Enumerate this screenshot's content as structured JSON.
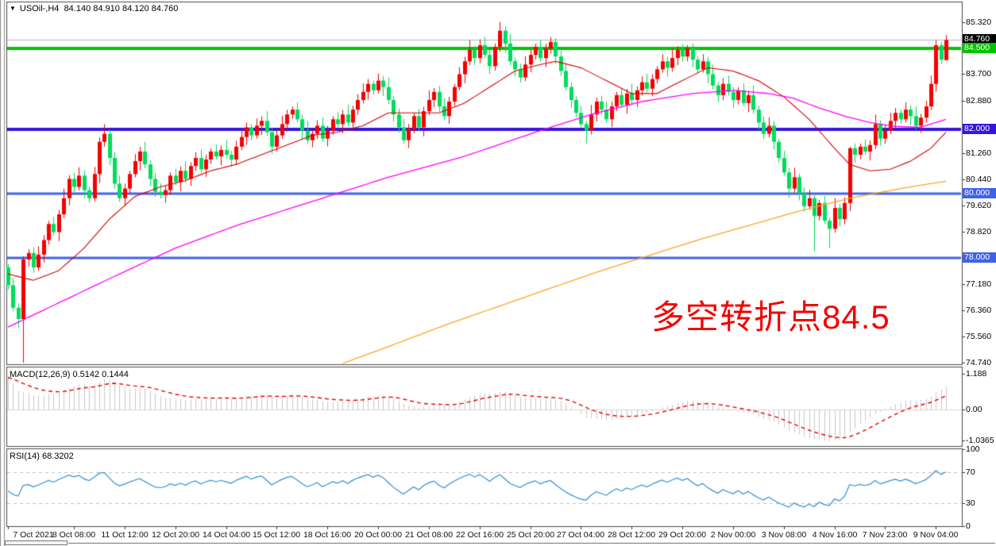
{
  "window": {
    "title_dropdown_icon": "▼",
    "symbol_title": "USOil-,H4",
    "ohlc_readout": "84.140 84.910 84.120 84.760"
  },
  "indicators": {
    "macd_label": "MACD(12,26,9) 0.5142 0.1444",
    "rsi_label": "RSI(14) 68.3202"
  },
  "annotation": {
    "text": "多空转折点84.5",
    "color": "#f40000"
  },
  "colors": {
    "background": "#ffffff",
    "panel_border": "#4a4a4a",
    "candle_up": "#f40000",
    "candle_down": "#00db5c",
    "current_price_line": "#b4b4b4",
    "ma_fast": "#d40000",
    "ma_mid": "#ff00ff",
    "ma_slow": "#ffa520",
    "macd_histogram": "#c8c8c8",
    "macd_signal": "#e80000",
    "rsi_line": "#2f8fd4",
    "rsi_level_dash": "#c0c0c0"
  },
  "chart_data": {
    "type": "candlestick",
    "symbol": "USOil-",
    "timeframe": "H4",
    "price_axis": {
      "plain": [
        {
          "label": "85.320",
          "price": 85.32
        },
        {
          "label": "83.700",
          "price": 83.7
        },
        {
          "label": "82.880",
          "price": 82.88
        },
        {
          "label": "81.260",
          "price": 81.26
        },
        {
          "label": "80.440",
          "price": 80.44
        },
        {
          "label": "79.620",
          "price": 79.62
        },
        {
          "label": "78.820",
          "price": 78.82
        },
        {
          "label": "77.180",
          "price": 77.18
        },
        {
          "label": "76.360",
          "price": 76.36
        },
        {
          "label": "75.560",
          "price": 75.56
        },
        {
          "label": "74.740",
          "price": 74.74
        }
      ],
      "boxes": [
        {
          "label": "84.760",
          "price": 84.76,
          "bg": "#000000"
        },
        {
          "label": "84.500",
          "price": 84.5,
          "bg": "#00c400"
        },
        {
          "label": "82.000",
          "price": 82.0,
          "bg": "#3616de"
        },
        {
          "label": "80.000",
          "price": 80.0,
          "bg": "#4062e6"
        },
        {
          "label": "78.000",
          "price": 78.0,
          "bg": "#4062e6"
        }
      ]
    },
    "time_axis": [
      {
        "label": "7 Oct 2021",
        "index": 0
      },
      {
        "label": "8 Oct 08:00",
        "index": 13
      },
      {
        "label": "11 Oct 12:00",
        "index": 23
      },
      {
        "label": "12 Oct 20:00",
        "index": 33
      },
      {
        "label": "14 Oct 04:00",
        "index": 43
      },
      {
        "label": "15 Oct 12:00",
        "index": 53
      },
      {
        "label": "18 Oct 16:00",
        "index": 63
      },
      {
        "label": "20 Oct 00:00",
        "index": 73
      },
      {
        "label": "21 Oct 08:00",
        "index": 83
      },
      {
        "label": "22 Oct 16:00",
        "index": 93
      },
      {
        "label": "25 Oct 20:00",
        "index": 103
      },
      {
        "label": "27 Oct 04:00",
        "index": 113
      },
      {
        "label": "28 Oct 12:00",
        "index": 123
      },
      {
        "label": "29 Oct 20:00",
        "index": 133
      },
      {
        "label": "2 Nov 00:00",
        "index": 143
      },
      {
        "label": "3 Nov 08:00",
        "index": 153
      },
      {
        "label": "4 Nov 16:00",
        "index": 163
      },
      {
        "label": "7 Nov 23:00",
        "index": 173
      },
      {
        "label": "9 Nov 04:00",
        "index": 183
      }
    ],
    "macd_axis": [
      {
        "label": "1.188",
        "value": 1.188
      },
      {
        "label": "0.00",
        "value": 0.0
      },
      {
        "label": "-1.0365",
        "value": -1.0365
      }
    ],
    "rsi_axis": [
      {
        "label": "100",
        "value": 100
      },
      {
        "label": "70",
        "value": 70
      },
      {
        "label": "30",
        "value": 30
      },
      {
        "label": "0",
        "value": 0
      }
    ],
    "hlines": [
      {
        "price": 84.5,
        "color": "#00c400",
        "width": 4
      },
      {
        "price": 82.0,
        "color": "#3616de",
        "width": 4
      },
      {
        "price": 80.0,
        "color": "#4062e6",
        "width": 3
      },
      {
        "price": 78.0,
        "color": "#4062e6",
        "width": 3
      }
    ],
    "current_price": {
      "price": 84.76,
      "color": "#b4b4b4"
    },
    "candles": {
      "first_open": 77.7,
      "closes": [
        77.15,
        76.45,
        76.1,
        77.95,
        78.15,
        77.7,
        78.1,
        78.55,
        79.05,
        78.8,
        79.35,
        79.85,
        80.45,
        80.2,
        80.55,
        80.1,
        79.85,
        80.6,
        81.6,
        81.85,
        81.1,
        80.3,
        79.85,
        80.15,
        80.6,
        81.0,
        81.3,
        80.9,
        80.45,
        80.05,
        79.95,
        80.1,
        80.55,
        80.35,
        80.7,
        80.45,
        80.85,
        81.1,
        80.75,
        81.05,
        81.3,
        81.15,
        81.35,
        81.2,
        81.05,
        81.45,
        81.75,
        82.05,
        81.8,
        82.1,
        82.25,
        81.9,
        81.45,
        81.8,
        82.15,
        82.45,
        82.6,
        82.3,
        81.95,
        81.65,
        81.85,
        82.1,
        81.7,
        81.95,
        82.3,
        82.15,
        82.45,
        82.2,
        82.6,
        82.9,
        83.15,
        83.4,
        83.2,
        83.5,
        83.3,
        82.9,
        82.45,
        82.05,
        81.65,
        82.0,
        82.4,
        82.05,
        82.55,
        82.9,
        83.15,
        82.7,
        82.4,
        82.85,
        83.3,
        83.7,
        84.1,
        84.45,
        84.2,
        84.6,
        84.3,
        83.95,
        84.55,
        85.05,
        84.65,
        84.1,
        83.85,
        83.6,
        84.0,
        84.3,
        84.55,
        84.2,
        84.5,
        84.7,
        84.25,
        83.8,
        83.3,
        82.9,
        82.5,
        82.15,
        81.95,
        82.45,
        82.85,
        82.6,
        82.3,
        82.7,
        83.05,
        82.75,
        83.1,
        82.9,
        83.2,
        83.45,
        83.25,
        83.55,
        83.85,
        84.1,
        83.9,
        84.2,
        84.45,
        84.25,
        84.5,
        84.15,
        83.85,
        84.1,
        83.7,
        83.35,
        83.05,
        83.4,
        83.15,
        82.9,
        83.2,
        82.8,
        83.05,
        82.6,
        82.2,
        81.85,
        82.1,
        81.6,
        81.1,
        80.65,
        80.15,
        80.5,
        80.0,
        79.6,
        79.85,
        79.3,
        79.7,
        79.15,
        78.9,
        79.55,
        79.2,
        79.7,
        81.4,
        81.2,
        81.45,
        81.3,
        81.5,
        82.15,
        81.7,
        81.95,
        82.25,
        82.5,
        82.3,
        82.6,
        82.4,
        82.1,
        82.35,
        82.7,
        83.4,
        84.6,
        84.15,
        84.76
      ],
      "wick_up_pattern": [
        0.1,
        0.22,
        0.14,
        0.3,
        0.12,
        0.18,
        0.26,
        0.15
      ],
      "wick_down_pattern": [
        0.14,
        0.1,
        0.28,
        0.12,
        0.22,
        0.16,
        0.11,
        0.24
      ],
      "specials": {
        "3": [
          76.1,
          78.05,
          74.74,
          77.95
        ],
        "19": [
          81.6,
          82.15,
          81.45,
          81.85
        ],
        "73": [
          83.2,
          83.72,
          83.1,
          83.5
        ],
        "97": [
          84.55,
          85.32,
          84.4,
          85.05
        ],
        "107": [
          84.5,
          84.85,
          84.35,
          84.7
        ],
        "114": [
          82.15,
          82.25,
          81.55,
          81.95
        ],
        "134": [
          84.25,
          84.6,
          84.1,
          84.5
        ],
        "159": [
          79.85,
          79.95,
          78.2,
          79.3
        ],
        "162": [
          79.15,
          79.25,
          78.3,
          78.9
        ],
        "166": [
          79.7,
          81.45,
          79.45,
          81.4
        ],
        "185": [
          84.14,
          84.91,
          84.12,
          84.76
        ]
      }
    },
    "ma_lines": [
      {
        "name": "ma-fast-red",
        "color": "#d40000",
        "width": 1.1,
        "points": [
          [
            0,
            77.5
          ],
          [
            5,
            77.3
          ],
          [
            10,
            77.6
          ],
          [
            15,
            78.3
          ],
          [
            20,
            79.2
          ],
          [
            25,
            79.9
          ],
          [
            30,
            80.2
          ],
          [
            35,
            80.4
          ],
          [
            40,
            80.7
          ],
          [
            45,
            80.9
          ],
          [
            50,
            81.2
          ],
          [
            55,
            81.5
          ],
          [
            60,
            81.8
          ],
          [
            65,
            81.9
          ],
          [
            70,
            82.1
          ],
          [
            75,
            82.5
          ],
          [
            85,
            82.5
          ],
          [
            90,
            82.8
          ],
          [
            95,
            83.3
          ],
          [
            100,
            83.8
          ],
          [
            105,
            84.0
          ],
          [
            108,
            84.1
          ],
          [
            113,
            83.9
          ],
          [
            118,
            83.5
          ],
          [
            123,
            83.1
          ],
          [
            128,
            83.1
          ],
          [
            133,
            83.5
          ],
          [
            138,
            83.9
          ],
          [
            143,
            83.8
          ],
          [
            148,
            83.5
          ],
          [
            153,
            83.0
          ],
          [
            158,
            82.3
          ],
          [
            163,
            81.4
          ],
          [
            166,
            80.9
          ],
          [
            170,
            80.7
          ],
          [
            174,
            80.75
          ],
          [
            178,
            81.0
          ],
          [
            182,
            81.4
          ],
          [
            185,
            81.9
          ]
        ]
      },
      {
        "name": "ma-mid-magenta",
        "color": "#ff00ff",
        "width": 1.3,
        "points": [
          [
            0,
            75.85
          ],
          [
            10,
            76.6
          ],
          [
            20,
            77.35
          ],
          [
            33,
            78.3
          ],
          [
            45,
            79.0
          ],
          [
            60,
            79.75
          ],
          [
            75,
            80.5
          ],
          [
            90,
            81.15
          ],
          [
            105,
            81.95
          ],
          [
            115,
            82.45
          ],
          [
            125,
            82.85
          ],
          [
            135,
            83.1
          ],
          [
            143,
            83.2
          ],
          [
            150,
            83.1
          ],
          [
            155,
            82.95
          ],
          [
            160,
            82.65
          ],
          [
            165,
            82.4
          ],
          [
            170,
            82.2
          ],
          [
            175,
            82.08
          ],
          [
            180,
            82.05
          ],
          [
            185,
            82.3
          ]
        ]
      },
      {
        "name": "ma-slow-orange",
        "color": "#ffa520",
        "width": 1.3,
        "points": [
          [
            66,
            74.72
          ],
          [
            76,
            75.3
          ],
          [
            86,
            75.9
          ],
          [
            96,
            76.45
          ],
          [
            106,
            77.0
          ],
          [
            116,
            77.55
          ],
          [
            126,
            78.05
          ],
          [
            136,
            78.55
          ],
          [
            146,
            79.0
          ],
          [
            156,
            79.45
          ],
          [
            166,
            79.85
          ],
          [
            176,
            80.15
          ],
          [
            185,
            80.38
          ]
        ]
      }
    ],
    "macd": {
      "params": [
        12,
        26,
        9
      ],
      "current_main": 0.5142,
      "current_signal": 0.1444,
      "seed": {
        "ema_fast": 78.9,
        "ema_slow": 77.55,
        "signal": 1.05
      }
    },
    "rsi": {
      "period": 14,
      "current": 68.3202,
      "levels": [
        70,
        30
      ],
      "seed": {
        "avg_gain": 0.22,
        "avg_loss": 0.26
      }
    }
  }
}
